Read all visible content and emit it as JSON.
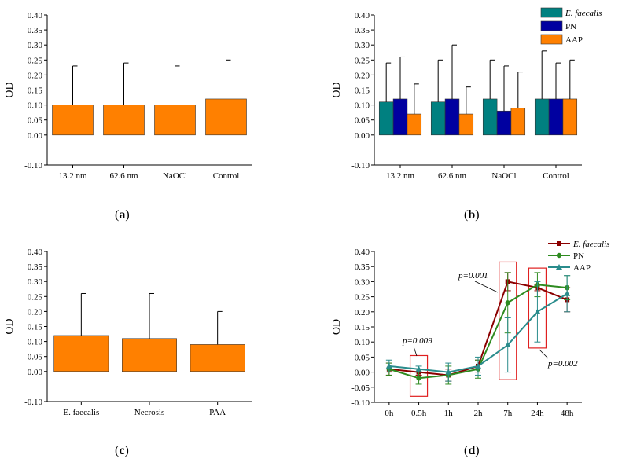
{
  "colors": {
    "orange": "#FF8000",
    "teal": "#008080",
    "navy": "#0000A0",
    "dark_red": "#8B0000",
    "green": "#2E8B20",
    "light_teal": "#2A8C8C",
    "box_red": "#E02020"
  },
  "panels": [
    {
      "open": "(",
      "letter": "a",
      "close": ")"
    },
    {
      "open": "(",
      "letter": "b",
      "close": ")"
    },
    {
      "open": "(",
      "letter": "c",
      "close": ")"
    },
    {
      "open": "(",
      "letter": "d",
      "close": ")"
    }
  ],
  "chart_data": [
    {
      "type": "bar",
      "ylabel": "OD",
      "ylim": [
        -0.1,
        0.4
      ],
      "yticks": [
        "-0.10",
        "0.00",
        "0.05",
        "0.10",
        "0.15",
        "0.20",
        "0.25",
        "0.30",
        "0.35",
        "0.40"
      ],
      "ytick_values": [
        -0.1,
        0.0,
        0.05,
        0.1,
        0.15,
        0.2,
        0.25,
        0.3,
        0.35,
        0.4
      ],
      "categories": [
        "13.2 nm",
        "62.6 nm",
        "NaOCl",
        "Control"
      ],
      "series": [
        {
          "name": "",
          "values": [
            0.1,
            0.1,
            0.1,
            0.12
          ],
          "errors": [
            0.13,
            0.14,
            0.13,
            0.13
          ]
        }
      ]
    },
    {
      "type": "bar",
      "ylabel": "OD",
      "ylim": [
        -0.1,
        0.4
      ],
      "yticks": [
        "-0.10",
        "0.00",
        "0.05",
        "0.10",
        "0.15",
        "0.20",
        "0.25",
        "0.30",
        "0.35",
        "0.40"
      ],
      "ytick_values": [
        -0.1,
        0.0,
        0.05,
        0.1,
        0.15,
        0.2,
        0.25,
        0.3,
        0.35,
        0.4
      ],
      "categories": [
        "13.2 nm",
        "62.6 nm",
        "NaOCl",
        "Control"
      ],
      "legend_position": "top-right",
      "series": [
        {
          "name": "E. faecalis",
          "italic": true,
          "values": [
            0.11,
            0.11,
            0.12,
            0.12
          ],
          "errors": [
            0.13,
            0.14,
            0.13,
            0.16
          ]
        },
        {
          "name": "PN",
          "italic": false,
          "values": [
            0.12,
            0.12,
            0.08,
            0.12
          ],
          "errors": [
            0.14,
            0.18,
            0.15,
            0.12
          ]
        },
        {
          "name": "AAP",
          "italic": false,
          "values": [
            0.07,
            0.07,
            0.09,
            0.12
          ],
          "errors": [
            0.1,
            0.09,
            0.12,
            0.13
          ]
        }
      ]
    },
    {
      "type": "bar",
      "ylabel": "OD",
      "ylim": [
        -0.1,
        0.4
      ],
      "yticks": [
        "-0.10",
        "0.00",
        "0.05",
        "0.10",
        "0.15",
        "0.20",
        "0.25",
        "0.30",
        "0.35",
        "0.40"
      ],
      "ytick_values": [
        -0.1,
        0.0,
        0.05,
        0.1,
        0.15,
        0.2,
        0.25,
        0.3,
        0.35,
        0.4
      ],
      "categories": [
        "E. faecalis",
        "Necrosis",
        "PAA"
      ],
      "series": [
        {
          "name": "",
          "values": [
            0.12,
            0.11,
            0.09
          ],
          "errors": [
            0.14,
            0.15,
            0.11
          ]
        }
      ]
    },
    {
      "type": "line",
      "ylabel": "OD",
      "ylim": [
        -0.1,
        0.4
      ],
      "yticks": [
        "-0.10",
        "-0.05",
        "0.00",
        "0.05",
        "0.10",
        "0.15",
        "0.20",
        "0.25",
        "0.30",
        "0.35",
        "0.40"
      ],
      "ytick_values": [
        -0.1,
        -0.05,
        0.0,
        0.05,
        0.1,
        0.15,
        0.2,
        0.25,
        0.3,
        0.35,
        0.4
      ],
      "categories": [
        "0h",
        "0.5h",
        "1h",
        "2h",
        "7h",
        "24h",
        "48h"
      ],
      "legend_position": "top-right",
      "series": [
        {
          "name": "E. faecalis",
          "italic": true,
          "marker": "square",
          "values": [
            0.01,
            0.0,
            -0.01,
            0.02,
            0.3,
            0.28,
            0.24
          ],
          "errors": [
            0.02,
            0.01,
            0.02,
            0.02,
            0.03,
            0.01,
            0.04
          ]
        },
        {
          "name": "PN",
          "italic": false,
          "marker": "circle",
          "values": [
            0.01,
            -0.02,
            -0.01,
            0.01,
            0.23,
            0.29,
            0.28
          ],
          "errors": [
            0.02,
            0.02,
            0.03,
            0.03,
            0.1,
            0.04,
            0.04
          ]
        },
        {
          "name": "AAP",
          "italic": false,
          "marker": "triangle",
          "values": [
            0.02,
            0.01,
            0.0,
            0.02,
            0.09,
            0.2,
            0.26
          ],
          "errors": [
            0.02,
            0.01,
            0.03,
            0.03,
            0.09,
            0.1,
            0.06
          ]
        }
      ],
      "annotations": [
        {
          "text": "p=0.009",
          "category": "0.5h"
        },
        {
          "text": "p=0.001",
          "category": "7h"
        },
        {
          "text": "p=0.002",
          "category": "24h"
        }
      ]
    }
  ]
}
